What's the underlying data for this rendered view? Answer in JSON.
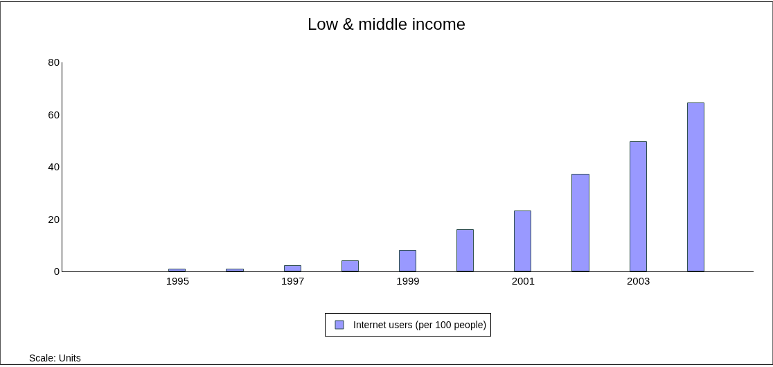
{
  "chart_data": {
    "type": "bar",
    "title": "Low & middle income",
    "x": [
      1995,
      1996,
      1997,
      1998,
      1999,
      2000,
      2001,
      2002,
      2003,
      2004
    ],
    "series": [
      {
        "name": "Internet users (per 100 people)",
        "color": "#9999ff",
        "values": [
          0.8,
          0.8,
          2,
          4,
          8,
          16,
          23,
          37,
          49.5,
          64.5
        ]
      }
    ],
    "xlim": [
      1993,
      2005
    ],
    "xticks": [
      1995,
      1997,
      1999,
      2001,
      2003
    ],
    "ylim": [
      0,
      80
    ],
    "yticks": [
      0,
      20,
      40,
      60,
      80
    ],
    "legend": "bottom",
    "annotations": [
      "Scale: Units"
    ]
  }
}
